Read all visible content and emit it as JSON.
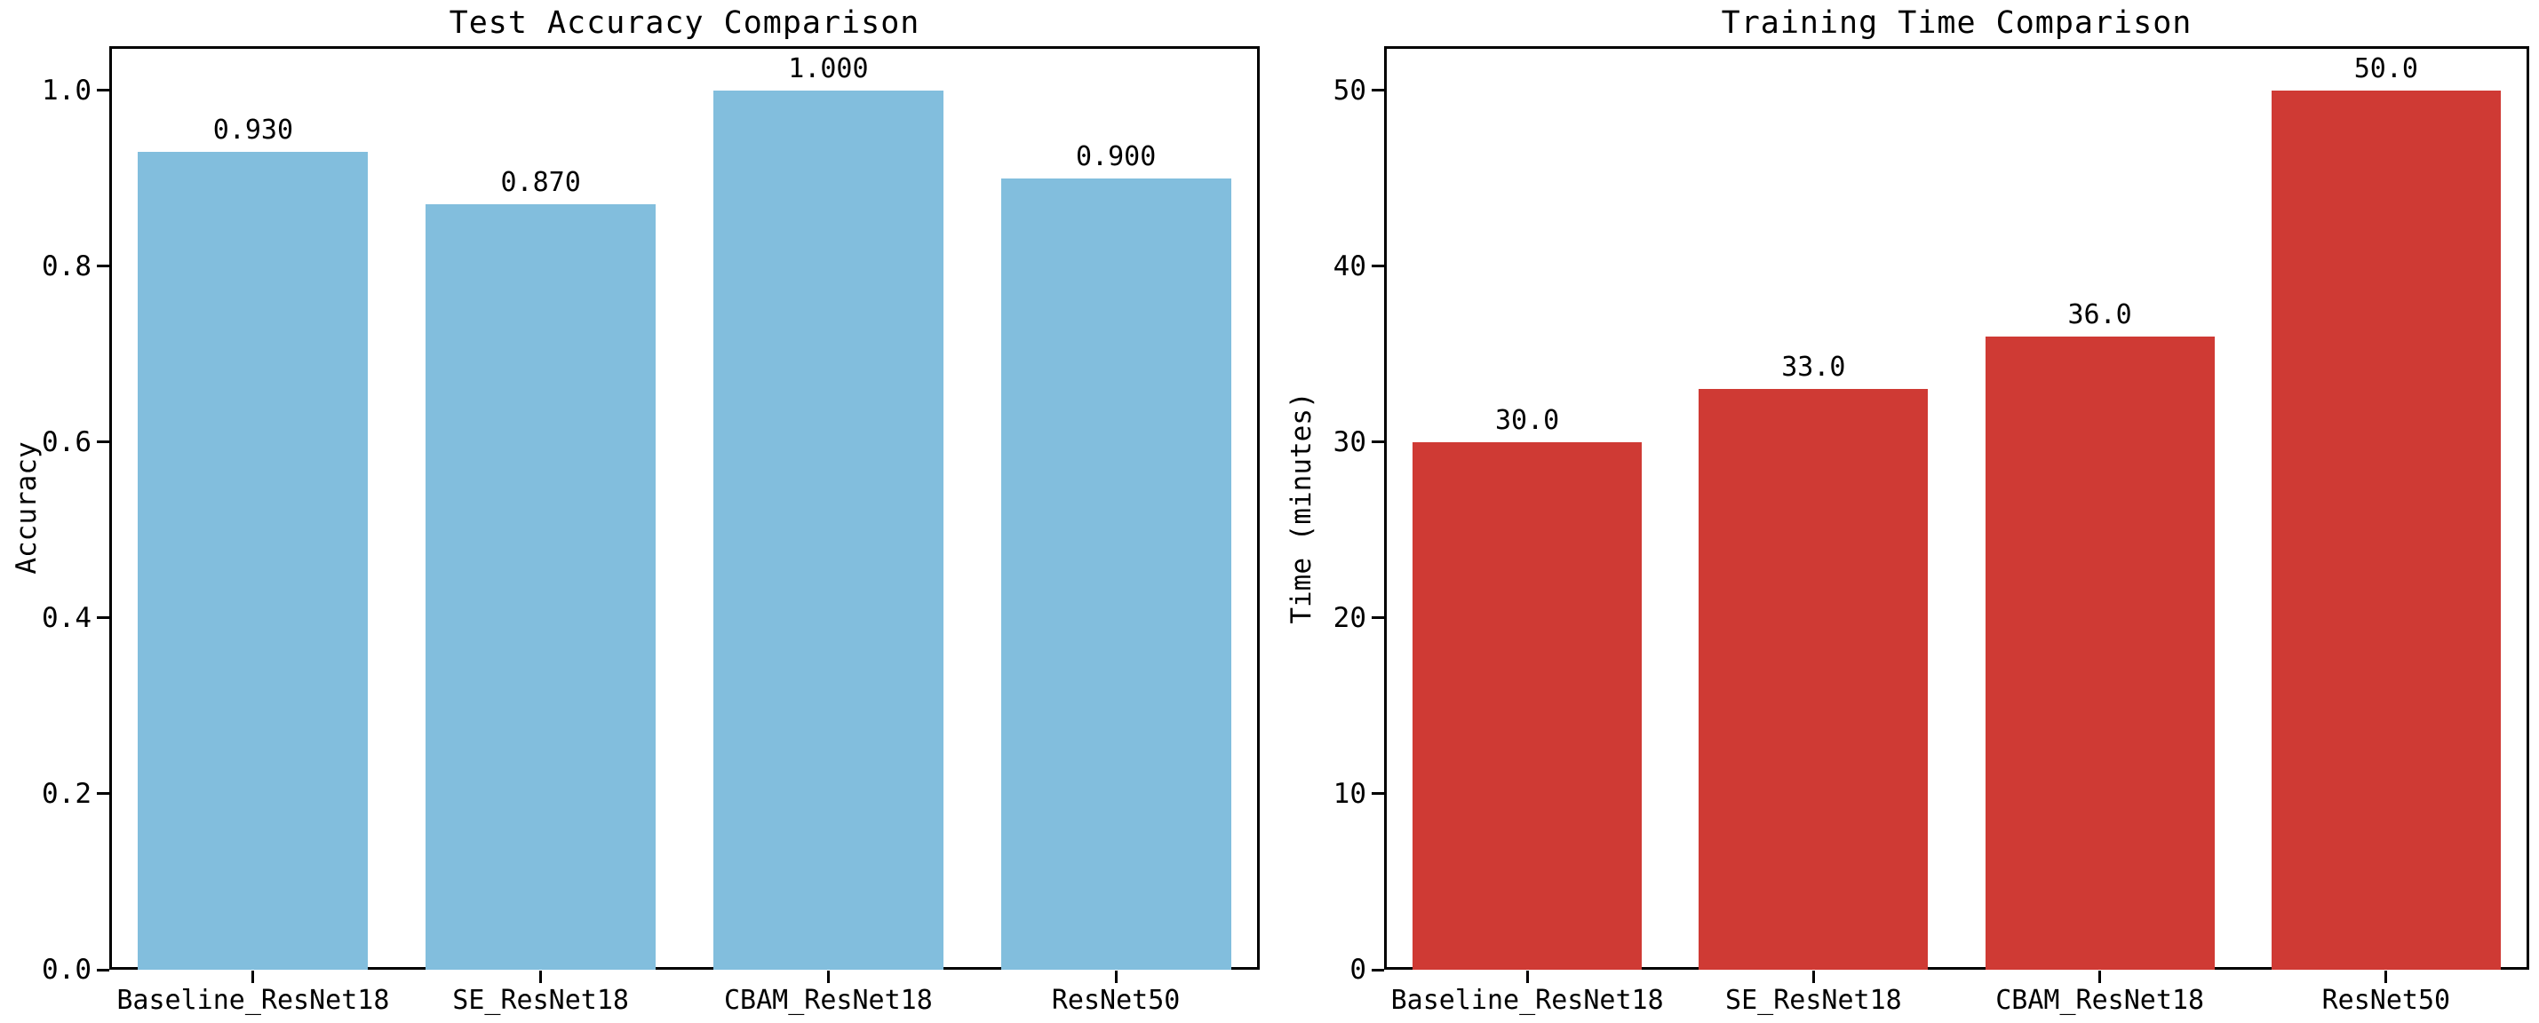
{
  "figure": {
    "background": "#ffffff",
    "text_color": "#000000",
    "spine_color": "#000000"
  },
  "chart_data": [
    {
      "type": "bar",
      "title": "Test Accuracy Comparison",
      "ylabel": "Accuracy",
      "xlabel": "",
      "categories": [
        "Baseline_ResNet18",
        "SE_ResNet18",
        "CBAM_ResNet18",
        "ResNet50"
      ],
      "values": [
        0.93,
        0.87,
        1.0,
        0.9
      ],
      "value_labels": [
        "0.930",
        "0.870",
        "1.000",
        "0.900"
      ],
      "bar_color": "#82bedd",
      "yticks": [
        0.0,
        0.2,
        0.4,
        0.6,
        0.8,
        1.0
      ],
      "ytick_labels": [
        "0.0",
        "0.2",
        "0.4",
        "0.6",
        "0.8",
        "1.0"
      ],
      "ylim": [
        0,
        1.05
      ],
      "grid": false,
      "legend": null
    },
    {
      "type": "bar",
      "title": "Training Time Comparison",
      "ylabel": "Time (minutes)",
      "xlabel": "",
      "categories": [
        "Baseline_ResNet18",
        "SE_ResNet18",
        "CBAM_ResNet18",
        "ResNet50"
      ],
      "values": [
        30.0,
        33.0,
        36.0,
        50.0
      ],
      "value_labels": [
        "30.0",
        "33.0",
        "36.0",
        "50.0"
      ],
      "bar_color": "#cf3a34",
      "yticks": [
        0,
        10,
        20,
        30,
        40,
        50
      ],
      "ytick_labels": [
        "0",
        "10",
        "20",
        "30",
        "40",
        "50"
      ],
      "ylim": [
        0,
        52.5
      ],
      "grid": false,
      "legend": null
    }
  ]
}
